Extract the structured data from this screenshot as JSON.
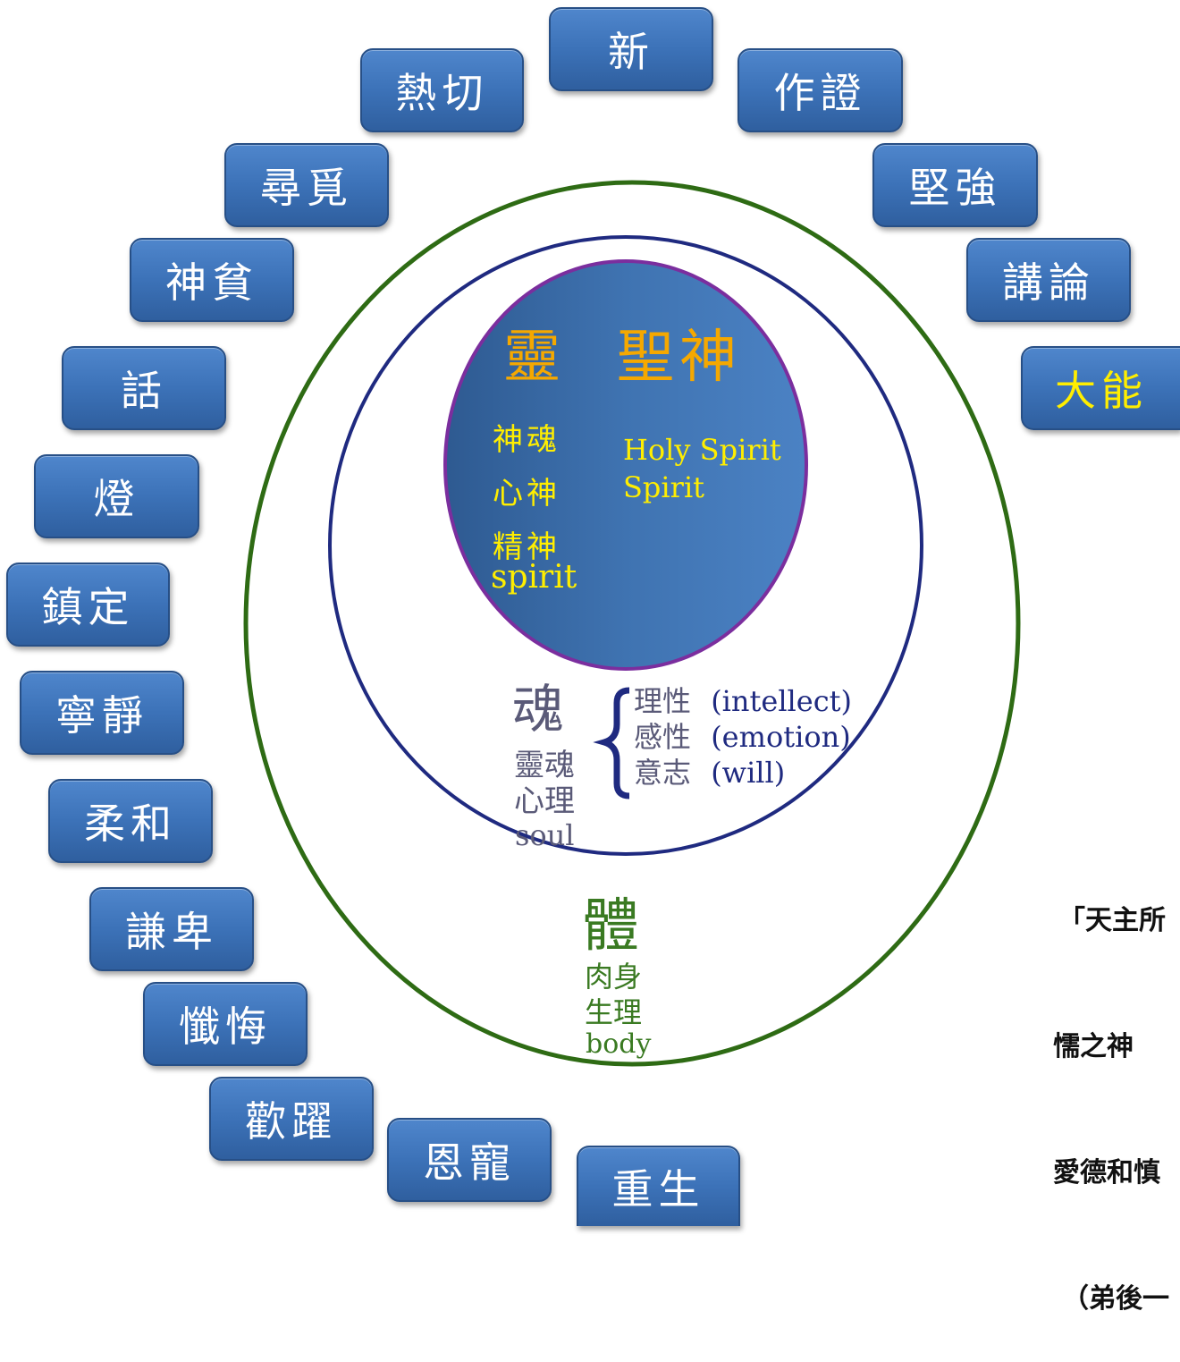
{
  "buttons": [
    {
      "id": "xin",
      "label": "新"
    },
    {
      "id": "reqie",
      "label": "熱切"
    },
    {
      "id": "zuozheng",
      "label": "作證"
    },
    {
      "id": "xunmi",
      "label": "尋覓"
    },
    {
      "id": "jianqiang",
      "label": "堅強"
    },
    {
      "id": "shenpin",
      "label": "神貧"
    },
    {
      "id": "jianglun",
      "label": "講論"
    },
    {
      "id": "hua",
      "label": "話"
    },
    {
      "id": "daneng",
      "label": "大能"
    },
    {
      "id": "deng",
      "label": "燈"
    },
    {
      "id": "zhending",
      "label": "鎮定"
    },
    {
      "id": "ningjing",
      "label": "寧靜"
    },
    {
      "id": "rouhe",
      "label": "柔和"
    },
    {
      "id": "qianbei",
      "label": "謙卑"
    },
    {
      "id": "chanhui",
      "label": "懺悔"
    },
    {
      "id": "huanyue",
      "label": "歡躍"
    },
    {
      "id": "enchong",
      "label": "恩寵"
    },
    {
      "id": "chongsheng",
      "label": "重生"
    }
  ],
  "spirit": {
    "title_left": "靈",
    "title_right": "聖神",
    "zh_lines": [
      "神魂",
      "心神",
      "精神"
    ],
    "en": "spirit",
    "holy_en": [
      "Holy Spirit",
      "Spirit"
    ]
  },
  "soul": {
    "title": "魂",
    "zh_lines": [
      "靈魂",
      "心理"
    ],
    "en": "soul",
    "faculties": [
      {
        "zh": "理性",
        "en": "(intellect)"
      },
      {
        "zh": "感性",
        "en": "(emotion)"
      },
      {
        "zh": "意志",
        "en": "(will)"
      }
    ]
  },
  "body": {
    "title": "體",
    "zh_lines": [
      "肉身",
      "生理"
    ],
    "en": "body"
  },
  "quote_lines": [
    "「天主所",
    "懦之神",
    "愛德和慎",
    "（弟後一"
  ],
  "colors": {
    "button_blue": "#3c72b8",
    "spirit_fill": "#3a6ea9",
    "gold": "#ffee00",
    "orange": "#f5a800",
    "soul_ring": "#1f2a80",
    "body_ring": "#2e6b14",
    "spirit_rim": "#7b2e9e",
    "soul_text": "#5a5a78",
    "body_text": "#3a7a22"
  }
}
